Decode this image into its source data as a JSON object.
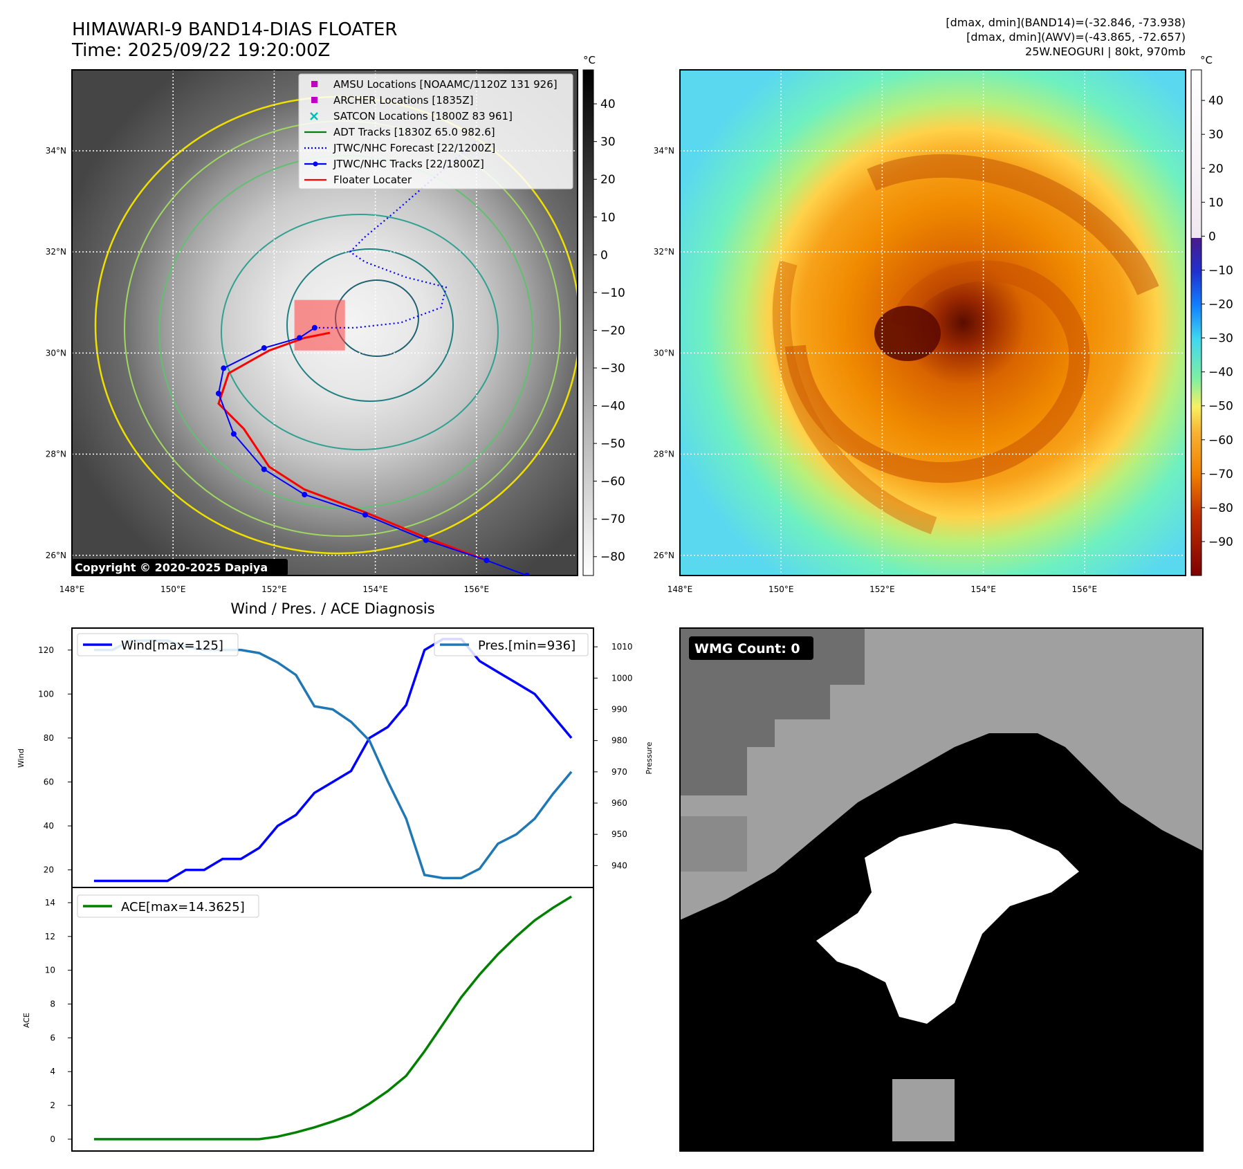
{
  "header": {
    "title_line1": "HIMAWARI-9 BAND14-DIAS FLOATER",
    "title_line2": "Time: 2025/09/22 19:20:00Z",
    "right_line1": "[dmax, dmin](BAND14)=(-32.846, -73.938)",
    "right_line2": "[dmax, dmin](AWV)=(-43.865, -72.657)",
    "right_line3": "25W.NEOGURI | 80kt, 970mb"
  },
  "map_axes": {
    "lat_labels": [
      "34°N",
      "32°N",
      "30°N",
      "28°N",
      "26°N"
    ],
    "lat_values": [
      34,
      32,
      30,
      28,
      26
    ],
    "lon_labels": [
      "148°E",
      "150°E",
      "152°E",
      "154°E",
      "156°E"
    ],
    "lon_values": [
      148,
      150,
      152,
      154,
      156
    ],
    "lon_range": [
      148,
      158
    ],
    "lat_range": [
      25.6,
      35.6
    ]
  },
  "left_map": {
    "copyright": "Copyright © 2020-2025 Dapiya",
    "colorbar_unit": "°C",
    "colorbar_ticks": [
      "40",
      "30",
      "20",
      "10",
      "0",
      "−10",
      "−20",
      "−30",
      "−40",
      "−50",
      "−60",
      "−70",
      "−80"
    ],
    "colorbar_values": [
      40,
      30,
      20,
      10,
      0,
      -10,
      -20,
      -30,
      -40,
      -50,
      -60,
      -70,
      -80
    ],
    "colorbar_range": [
      -85,
      49
    ],
    "legend": [
      {
        "label": "AMSU Locations [NOAAMC/1120Z 131 926]",
        "kind": "square",
        "color": "#c000c0"
      },
      {
        "label": "ARCHER Locations [1835Z]",
        "kind": "square",
        "color": "#c000c0"
      },
      {
        "label": "SATCON Locations [1800Z 83 961]",
        "kind": "x",
        "color": "#00c0b0"
      },
      {
        "label": "ADT Tracks [1830Z 65.0 982.6]",
        "kind": "line",
        "color": "#008000"
      },
      {
        "label": "JTWC/NHC Forecast [22/1200Z]",
        "kind": "dotted",
        "color": "#0000ff"
      },
      {
        "label": "JTWC/NHC Tracks [22/1800Z]",
        "kind": "line-dot",
        "color": "#0000ff"
      },
      {
        "label": "Floater Locater",
        "kind": "line",
        "color": "#ff0000"
      }
    ],
    "jtwc_track": [
      [
        157.0,
        25.6
      ],
      [
        156.2,
        25.9
      ],
      [
        155.0,
        26.3
      ],
      [
        153.8,
        26.8
      ],
      [
        152.6,
        27.2
      ],
      [
        151.8,
        27.7
      ],
      [
        151.2,
        28.4
      ],
      [
        150.9,
        29.2
      ],
      [
        151.0,
        29.7
      ],
      [
        151.8,
        30.1
      ],
      [
        152.5,
        30.3
      ],
      [
        152.8,
        30.5
      ]
    ],
    "jtwc_forecast": [
      [
        152.8,
        30.5
      ],
      [
        153.6,
        30.5
      ],
      [
        154.5,
        30.6
      ],
      [
        155.3,
        30.9
      ],
      [
        155.4,
        31.3
      ],
      [
        154.6,
        31.5
      ],
      [
        153.8,
        31.8
      ],
      [
        153.5,
        32.0
      ],
      [
        153.8,
        32.3
      ],
      [
        154.4,
        32.8
      ],
      [
        155.2,
        33.5
      ],
      [
        156.0,
        34.2
      ]
    ],
    "adt_track": [
      [
        156.2,
        25.9
      ],
      [
        155.0,
        26.35
      ],
      [
        153.8,
        26.85
      ],
      [
        152.6,
        27.3
      ],
      [
        151.9,
        27.75
      ],
      [
        151.4,
        28.5
      ],
      [
        150.9,
        29.0
      ],
      [
        151.1,
        29.6
      ],
      [
        151.9,
        30.05
      ],
      [
        152.6,
        30.3
      ],
      [
        153.1,
        30.4
      ]
    ],
    "floater_box": {
      "lon": [
        152.4,
        153.4
      ],
      "lat": [
        30.05,
        31.05
      ]
    }
  },
  "right_map": {
    "colorbar_unit": "°C",
    "colorbar_ticks": [
      "40",
      "30",
      "20",
      "10",
      "0",
      "−10",
      "−20",
      "−30",
      "−40",
      "−50",
      "−60",
      "−70",
      "−80",
      "−90"
    ],
    "colorbar_values": [
      40,
      30,
      20,
      10,
      0,
      -10,
      -20,
      -30,
      -40,
      -50,
      -60,
      -70,
      -80,
      -90
    ],
    "colorbar_range": [
      -100,
      49
    ]
  },
  "chart_data": [
    {
      "type": "line",
      "title": "Wind / Pres. / ACE Diagnosis",
      "ylabel": "Wind",
      "ylabel2": "Pressure",
      "ylim": [
        12,
        130
      ],
      "ylim2": [
        933,
        1016
      ],
      "yticks": [
        20,
        40,
        60,
        80,
        100,
        120
      ],
      "yticks2": [
        940,
        950,
        960,
        970,
        980,
        990,
        1000,
        1010
      ],
      "x": [
        0,
        1,
        2,
        3,
        4,
        5,
        6,
        7,
        8,
        9,
        10,
        11,
        12,
        13,
        14,
        15,
        16,
        17,
        18,
        19,
        20,
        21,
        22,
        23,
        24,
        25,
        26
      ],
      "series": [
        {
          "name": "Wind[max=125]",
          "axis": "left",
          "color": "#0000ff",
          "values": [
            15,
            15,
            15,
            15,
            15,
            20,
            20,
            25,
            25,
            30,
            40,
            45,
            55,
            60,
            65,
            80,
            85,
            95,
            120,
            125,
            125,
            115,
            110,
            105,
            100,
            90,
            80
          ]
        },
        {
          "name": "Pres.[min=936]",
          "axis": "right",
          "color": "#1f77b4",
          "values": [
            1009,
            1009,
            1012,
            1012,
            1012,
            1010,
            1009,
            1009,
            1009,
            1008,
            1005,
            1001,
            991,
            990,
            986,
            980,
            967,
            955,
            937,
            936,
            936,
            939,
            947,
            950,
            955,
            963,
            970
          ]
        }
      ]
    },
    {
      "type": "line",
      "ylabel": "ACE",
      "ylim": [
        -0.7,
        14.9
      ],
      "yticks": [
        0,
        2,
        4,
        6,
        8,
        10,
        12,
        14
      ],
      "x": [
        0,
        1,
        2,
        3,
        4,
        5,
        6,
        7,
        8,
        9,
        10,
        11,
        12,
        13,
        14,
        15,
        16,
        17,
        18,
        19,
        20,
        21,
        22,
        23,
        24,
        25,
        26
      ],
      "series": [
        {
          "name": "ACE[max=14.3625]",
          "color": "#008000",
          "values": [
            0,
            0,
            0,
            0,
            0,
            0,
            0,
            0,
            0,
            0,
            0.15,
            0.4,
            0.7,
            1.05,
            1.45,
            2.1,
            2.85,
            3.75,
            5.2,
            6.8,
            8.4,
            9.75,
            10.95,
            12.0,
            12.95,
            13.7,
            14.3625
          ]
        }
      ]
    }
  ],
  "wmg_panel": {
    "label": "WMG Count: 0"
  }
}
